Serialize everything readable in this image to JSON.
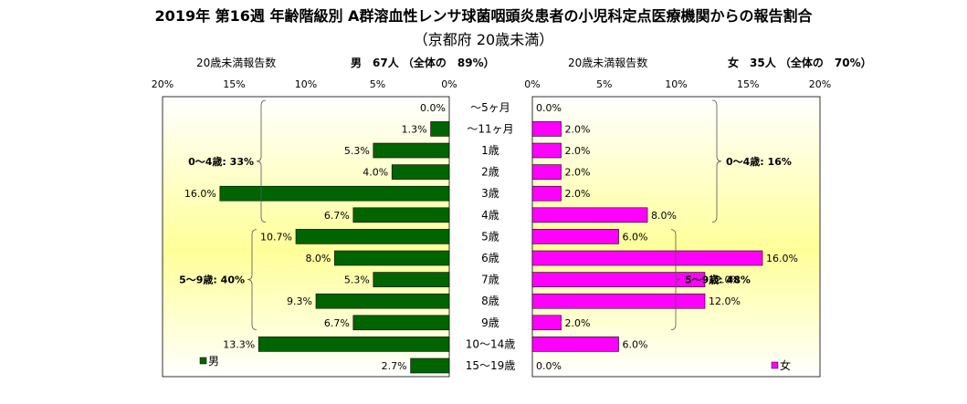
{
  "title": "2019年 第16週 年齢階級別 A群溶血性レンサ球菌咽頭炎患者の小児科定点医療機関からの報告割合",
  "subtitle": "（京都府 20歳未満）",
  "left_header": {
    "axis_title": "20歳未満報告数",
    "summary": "男　67人 （全体の　89%）"
  },
  "right_header": {
    "axis_title": "20歳未満報告数",
    "summary": "女　35人 （全体の　70%）"
  },
  "chart_data": {
    "type": "bar",
    "orientation": "horizontal-butterfly",
    "categories": [
      "～5ヶ月",
      "～11ヶ月",
      "1歳",
      "2歳",
      "3歳",
      "4歳",
      "5歳",
      "6歳",
      "7歳",
      "8歳",
      "9歳",
      "10～14歳",
      "15～19歳"
    ],
    "series": [
      {
        "name": "男",
        "color": "#006400",
        "values": [
          0.0,
          1.3,
          5.3,
          4.0,
          16.0,
          6.7,
          10.7,
          8.0,
          5.3,
          9.3,
          6.7,
          13.3,
          2.7
        ]
      },
      {
        "name": "女",
        "color": "#ff00ff",
        "values": [
          0.0,
          2.0,
          2.0,
          2.0,
          2.0,
          8.0,
          6.0,
          16.0,
          12.0,
          12.0,
          2.0,
          6.0,
          0.0
        ]
      }
    ],
    "xlim": [
      0,
      20
    ],
    "ticks": [
      "0%",
      "5%",
      "10%",
      "15%",
      "20%"
    ],
    "left_groups": [
      {
        "label": "0～4歳: 33%",
        "from": 0,
        "to": 5
      },
      {
        "label": "5～9歳: 40%",
        "from": 6,
        "to": 10
      }
    ],
    "right_groups": [
      {
        "label": "0～4歳: 16%",
        "from": 0,
        "to": 5
      },
      {
        "label": "5～9歳: 48%",
        "from": 6,
        "to": 10
      }
    ],
    "legend_left": "男",
    "legend_right": "女"
  }
}
